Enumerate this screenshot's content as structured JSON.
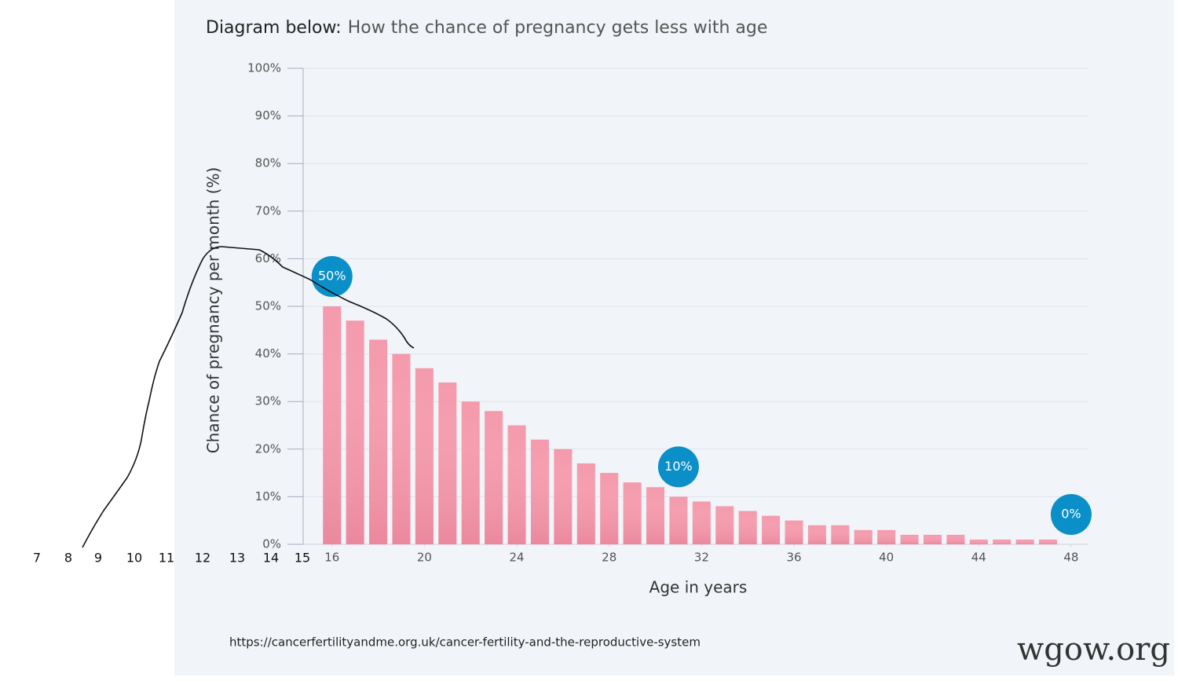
{
  "chart_data": {
    "type": "bar",
    "title_lead": "Diagram below:",
    "title": "How the chance of pregnancy gets less with age",
    "y_label": "Chance of pregnancy per month (%)",
    "x_label": "Age in years",
    "x": [
      16,
      17,
      18,
      19,
      20,
      21,
      22,
      23,
      24,
      25,
      26,
      27,
      28,
      29,
      30,
      31,
      32,
      33,
      34,
      35,
      36,
      37,
      38,
      39,
      40,
      41,
      42,
      43,
      44,
      45,
      46,
      47
    ],
    "values": [
      50,
      47,
      43,
      40,
      37,
      34,
      30,
      28,
      25,
      22,
      20,
      17,
      15,
      13,
      12,
      10,
      9,
      8,
      7,
      6,
      5,
      4,
      4,
      3,
      3,
      2,
      2,
      2,
      1,
      1,
      1,
      1
    ],
    "color": "#f49aac",
    "xlim": [
      14.75,
      48.75
    ],
    "xticks": [
      16,
      20,
      24,
      28,
      32,
      36,
      40,
      44,
      48
    ],
    "ylim": [
      0,
      100
    ],
    "yticks": [
      {
        "value": 0,
        "label": "0%"
      },
      {
        "value": 10,
        "label": "10%"
      },
      {
        "value": 20,
        "label": "20%"
      },
      {
        "value": 30,
        "label": "30%"
      },
      {
        "value": 40,
        "label": "40%"
      },
      {
        "value": 50,
        "label": "50%"
      },
      {
        "value": 60,
        "label": "60%"
      },
      {
        "value": 70,
        "label": "70%"
      },
      {
        "value": 80,
        "label": "80%"
      },
      {
        "value": 90,
        "label": "90%"
      },
      {
        "value": 100,
        "label": "100%"
      }
    ],
    "grid": true,
    "annotations": [
      {
        "text": "50%",
        "x": 16
      },
      {
        "text": "10%",
        "x": 31
      },
      {
        "text": "0%",
        "x": 48
      }
    ],
    "annotation_color": "#0a8fc9",
    "added_age_labels": [
      7,
      8,
      9,
      10,
      11,
      12,
      13,
      14,
      15
    ],
    "source": "https://cancerfertilityandme.org.uk/cancer-fertility-and-the-reproductive-system",
    "watermark": "wgow.org"
  }
}
